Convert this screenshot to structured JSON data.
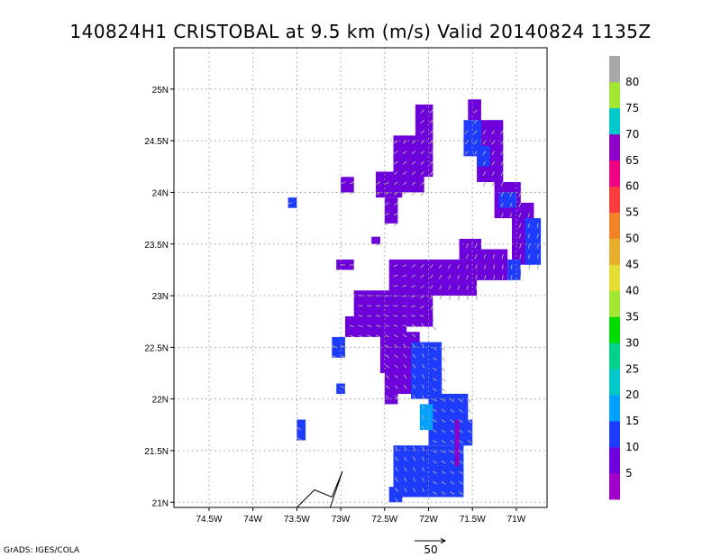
{
  "title": "140824H1 CRISTOBAL at 9.5 km (m/s) Valid 20140824 1135Z",
  "credit": "GrADS: IGES/COLA",
  "colors": {
    "grid": "#999999",
    "vector": "#a8a8a8",
    "track": "#000000"
  },
  "chart_data": {
    "type": "heatmap",
    "title": "140824H1 CRISTOBAL at 9.5 km (m/s) Valid 20140824 1135Z",
    "xlabel": "",
    "ylabel": "",
    "xlim": [
      -74.9,
      -70.65
    ],
    "ylim": [
      20.95,
      25.4
    ],
    "grid": true,
    "x_ticks": [
      {
        "value": -74.5,
        "label": "74.5W"
      },
      {
        "value": -74.0,
        "label": "74W"
      },
      {
        "value": -73.5,
        "label": "73.5W"
      },
      {
        "value": -73.0,
        "label": "73W"
      },
      {
        "value": -72.5,
        "label": "72.5W"
      },
      {
        "value": -72.0,
        "label": "72W"
      },
      {
        "value": -71.5,
        "label": "71.5W"
      },
      {
        "value": -71.0,
        "label": "71W"
      }
    ],
    "y_ticks": [
      {
        "value": 21.0,
        "label": "21N"
      },
      {
        "value": 21.5,
        "label": "21.5N"
      },
      {
        "value": 22.0,
        "label": "22N"
      },
      {
        "value": 22.5,
        "label": "22.5N"
      },
      {
        "value": 23.0,
        "label": "23N"
      },
      {
        "value": 23.5,
        "label": "23.5N"
      },
      {
        "value": 24.0,
        "label": "24N"
      },
      {
        "value": 24.5,
        "label": "24.5N"
      },
      {
        "value": 25.0,
        "label": "25N"
      }
    ],
    "colorbar": {
      "colors": [
        "#a000c8",
        "#6e00dc",
        "#1e3cff",
        "#00a0ff",
        "#00c8c8",
        "#00d28c",
        "#00dc00",
        "#a0e632",
        "#e6dc32",
        "#e6af2d",
        "#f08228",
        "#fa3c3c",
        "#f00082",
        "#8c00c8",
        "#00c8c8",
        "#a0e632",
        "#a8a8a8"
      ],
      "labels": [
        "5",
        "10",
        "15",
        "20",
        "25",
        "30",
        "35",
        "40",
        "45",
        "50",
        "55",
        "60",
        "65",
        "70",
        "75",
        "80"
      ]
    },
    "reference_vector": {
      "label": "50",
      "value": 50
    },
    "track": [
      [
        -73.5,
        20.95
      ],
      [
        -73.3,
        21.12
      ],
      [
        -73.1,
        21.05
      ],
      [
        -72.98,
        21.3
      ],
      [
        -73.12,
        20.95
      ]
    ],
    "wind_speed_regions": [
      {
        "lon0": -72.15,
        "lon1": -71.95,
        "lat0": 24.15,
        "lat1": 24.85,
        "value": 5
      },
      {
        "lon0": -72.4,
        "lon1": -72.05,
        "lat0": 24.0,
        "lat1": 24.55,
        "value": 5
      },
      {
        "lon0": -72.6,
        "lon1": -72.3,
        "lat0": 23.95,
        "lat1": 24.2,
        "value": 5
      },
      {
        "lon0": -73.0,
        "lon1": -72.85,
        "lat0": 24.0,
        "lat1": 24.15,
        "value": 5
      },
      {
        "lon0": -72.5,
        "lon1": -72.35,
        "lat0": 23.7,
        "lat1": 23.95,
        "value": 5
      },
      {
        "lon0": -72.65,
        "lon1": -72.55,
        "lat0": 23.5,
        "lat1": 23.57,
        "value": 5
      },
      {
        "lon0": -73.05,
        "lon1": -72.85,
        "lat0": 23.25,
        "lat1": 23.35,
        "value": 5
      },
      {
        "lon0": -71.55,
        "lon1": -71.4,
        "lat0": 24.7,
        "lat1": 24.9,
        "value": 5
      },
      {
        "lon0": -71.45,
        "lon1": -71.15,
        "lat0": 24.1,
        "lat1": 24.7,
        "value": 5
      },
      {
        "lon0": -71.25,
        "lon1": -70.95,
        "lat0": 23.75,
        "lat1": 24.1,
        "value": 5
      },
      {
        "lon0": -71.05,
        "lon1": -70.8,
        "lat0": 23.3,
        "lat1": 23.9,
        "value": 5
      },
      {
        "lon0": -71.65,
        "lon1": -71.4,
        "lat0": 23.35,
        "lat1": 23.55,
        "value": 5
      },
      {
        "lon0": -71.45,
        "lon1": -71.1,
        "lat0": 23.15,
        "lat1": 23.45,
        "value": 5
      },
      {
        "lon0": -72.45,
        "lon1": -71.45,
        "lat0": 23.0,
        "lat1": 23.35,
        "value": 5
      },
      {
        "lon0": -72.85,
        "lon1": -72.25,
        "lat0": 22.6,
        "lat1": 23.05,
        "value": 5
      },
      {
        "lon0": -72.95,
        "lon1": -72.75,
        "lat0": 22.6,
        "lat1": 22.8,
        "value": 5
      },
      {
        "lon0": -72.25,
        "lon1": -71.95,
        "lat0": 22.7,
        "lat1": 23.0,
        "value": 5
      },
      {
        "lon0": -72.55,
        "lon1": -72.1,
        "lat0": 22.25,
        "lat1": 22.65,
        "value": 5
      },
      {
        "lon0": -72.5,
        "lon1": -71.85,
        "lat0": 22.05,
        "lat1": 22.3,
        "value": 5
      },
      {
        "lon0": -72.5,
        "lon1": -72.35,
        "lat0": 21.95,
        "lat1": 22.1,
        "value": 5
      },
      {
        "lon0": -73.6,
        "lon1": -73.5,
        "lat0": 23.85,
        "lat1": 23.95,
        "value": 10
      },
      {
        "lon0": -71.6,
        "lon1": -71.4,
        "lat0": 24.35,
        "lat1": 24.7,
        "value": 10
      },
      {
        "lon0": -71.45,
        "lon1": -71.3,
        "lat0": 24.25,
        "lat1": 24.45,
        "value": 10
      },
      {
        "lon0": -71.2,
        "lon1": -71.0,
        "lat0": 23.85,
        "lat1": 24.0,
        "value": 10
      },
      {
        "lon0": -70.9,
        "lon1": -70.72,
        "lat0": 23.3,
        "lat1": 23.75,
        "value": 10
      },
      {
        "lon0": -71.1,
        "lon1": -70.95,
        "lat0": 23.15,
        "lat1": 23.35,
        "value": 10
      },
      {
        "lon0": -73.1,
        "lon1": -72.95,
        "lat0": 22.4,
        "lat1": 22.6,
        "value": 10
      },
      {
        "lon0": -73.05,
        "lon1": -72.95,
        "lat0": 22.05,
        "lat1": 22.15,
        "value": 10
      },
      {
        "lon0": -72.2,
        "lon1": -71.85,
        "lat0": 22.0,
        "lat1": 22.55,
        "value": 10
      },
      {
        "lon0": -72.0,
        "lon1": -71.55,
        "lat0": 21.55,
        "lat1": 22.05,
        "value": 10
      },
      {
        "lon0": -71.65,
        "lon1": -71.5,
        "lat0": 21.55,
        "lat1": 21.8,
        "value": 10
      },
      {
        "lon0": -72.4,
        "lon1": -71.6,
        "lat0": 21.05,
        "lat1": 21.55,
        "value": 10
      },
      {
        "lon0": -72.45,
        "lon1": -72.3,
        "lat0": 21.0,
        "lat1": 21.15,
        "value": 10
      },
      {
        "lon0": -73.5,
        "lon1": -73.4,
        "lat0": 21.6,
        "lat1": 21.8,
        "value": 10
      },
      {
        "lon0": -72.1,
        "lon1": -71.95,
        "lat0": 21.7,
        "lat1": 21.95,
        "value": 15
      },
      {
        "lon0": -71.7,
        "lon1": -71.65,
        "lat0": 21.35,
        "lat1": 21.8,
        "value": 70
      }
    ]
  }
}
